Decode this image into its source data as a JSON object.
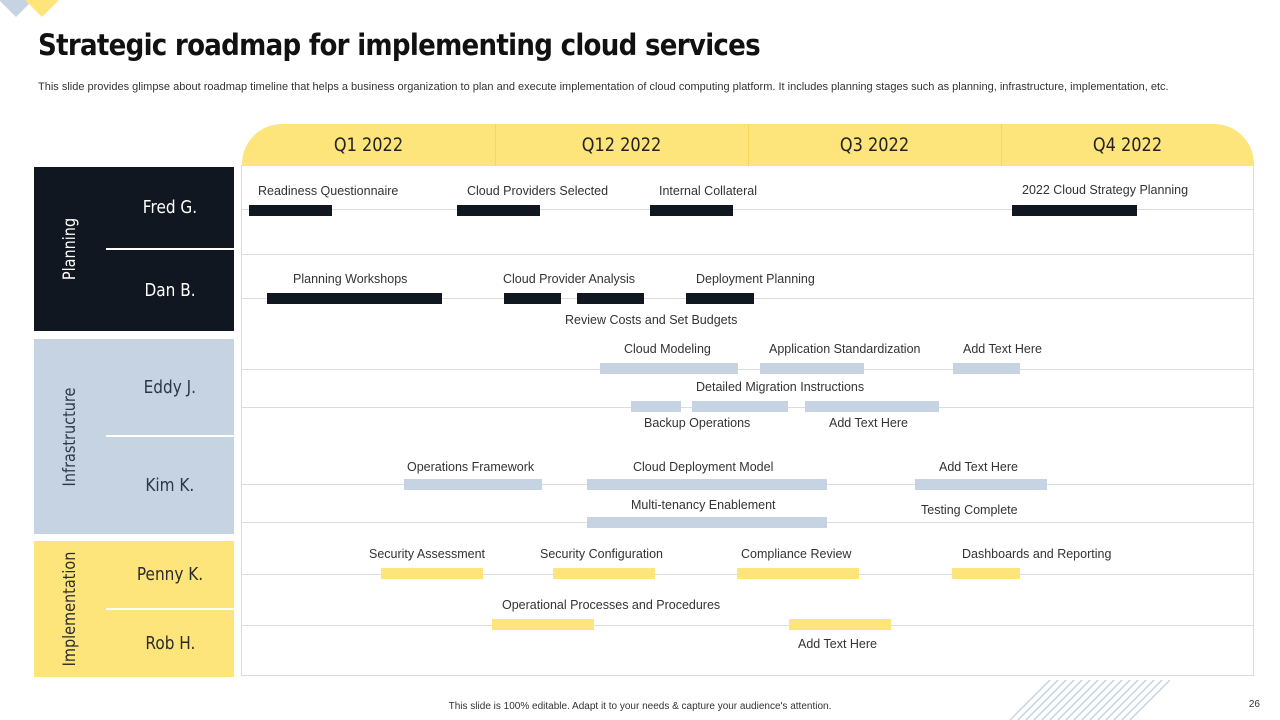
{
  "title": "Strategic roadmap for implementing cloud services",
  "subtitle": "This slide provides glimpse about roadmap timeline that helps a business organization to plan and execute implementation of cloud computing platform. It includes planning stages such as planning, infrastructure, implementation, etc.",
  "quarters": [
    "Q1 2022",
    "Q12 2022",
    "Q3 2022",
    "Q4 2022"
  ],
  "categories": {
    "planning": "Planning",
    "infrastructure": "Infrastructure",
    "implementation": "Implementation"
  },
  "people": {
    "fred": "Fred G.",
    "dan": "Dan B.",
    "eddy": "Eddy J.",
    "kim": "Kim K.",
    "penny": "Penny K.",
    "rob": "Rob H."
  },
  "tasks": {
    "readiness": "Readiness Questionnaire",
    "providers_selected": "Cloud Providers  Selected",
    "internal_collateral": "Internal Collateral",
    "strategy_planning": "2022 Cloud Strategy Planning",
    "planning_workshops": "Planning Workshops",
    "provider_analysis": "Cloud Provider  Analysis",
    "deployment_planning": "Deployment Planning",
    "review_costs": "Review  Costs and Set Budgets",
    "cloud_modeling": "Cloud Modeling",
    "app_standardization": "Application Standardization",
    "eddy_add_text": "Add Text Here",
    "migration_instructions": "Detailed Migration  Instructions",
    "backup_operations": "Backup Operations",
    "eddy_add_text_2": "Add Text Here",
    "operations_framework": "Operations Framework",
    "deployment_model": "Cloud Deployment Model",
    "kim_add_text": "Add Text Here",
    "multi_tenancy": "Multi-tenancy Enablement",
    "testing_complete": "Testing Complete",
    "security_assessment": "Security Assessment",
    "security_configuration": "Security Configuration",
    "compliance_review": "Compliance Review",
    "dashboards_reporting": "Dashboards and Reporting",
    "operational_processes": "Operational Processes and Procedures",
    "rob_add_text": "Add Text Here"
  },
  "colors": {
    "dark": "#111720",
    "blue": "#c5d3e2",
    "yellow": "#fde57c"
  },
  "footer": "This slide is 100% editable.  Adapt it to your needs & capture your audience's attention.",
  "page_number": "26"
}
